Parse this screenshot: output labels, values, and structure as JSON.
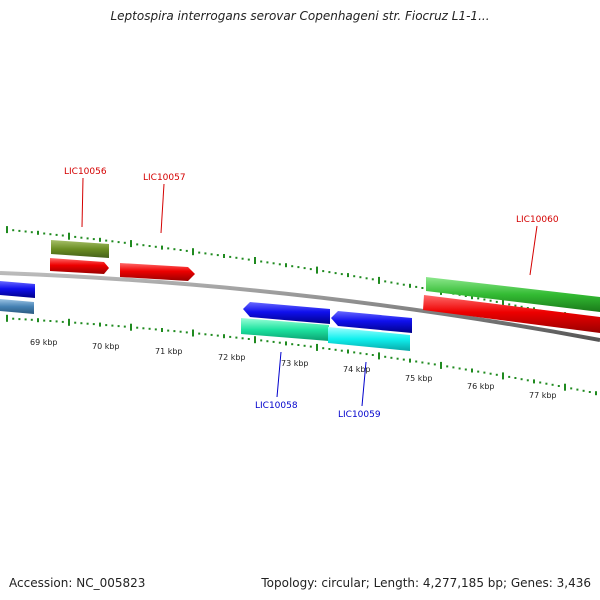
{
  "header": {
    "title": "Leptospira interrogans serovar Copenhageni str. Fiocruz L1-1..."
  },
  "footer": {
    "accession": "Accession: NC_005823",
    "summary": "Topology: circular; Length: 4,277,185 bp; Genes: 3,436"
  },
  "map": {
    "colors": {
      "backbone": "#888888",
      "tick": "#1f8a1f",
      "label_forward": "#d40000",
      "label_reverse": "#0000cc"
    },
    "scale_labels": [
      "69 kbp",
      "70 kbp",
      "71 kbp",
      "72 kbp",
      "73 kbp",
      "74 kbp",
      "75 kbp",
      "76 kbp",
      "77 kbp"
    ],
    "genes": [
      {
        "id": "LIC10056",
        "label": "LIC10056",
        "strand": "forward",
        "color": "#cc0000",
        "track_color": "#6b8e23"
      },
      {
        "id": "LIC10057",
        "label": "LIC10057",
        "strand": "forward",
        "color": "#dd0000"
      },
      {
        "id": "LIC10058",
        "label": "LIC10058",
        "strand": "reverse",
        "color": "#0000dd",
        "track_color": "#1ee3a0"
      },
      {
        "id": "LIC10059",
        "label": "LIC10059",
        "strand": "reverse",
        "color": "#0000dd",
        "track_color": "#10f0ee"
      },
      {
        "id": "LIC10060",
        "label": "LIC10060",
        "strand": "forward",
        "color": "#dd0000",
        "track_color": "#33bb33"
      },
      {
        "id": "unlabeled-left",
        "label": "",
        "strand": "reverse",
        "color": "#0000dd",
        "track_color": "#4682b4"
      }
    ]
  }
}
